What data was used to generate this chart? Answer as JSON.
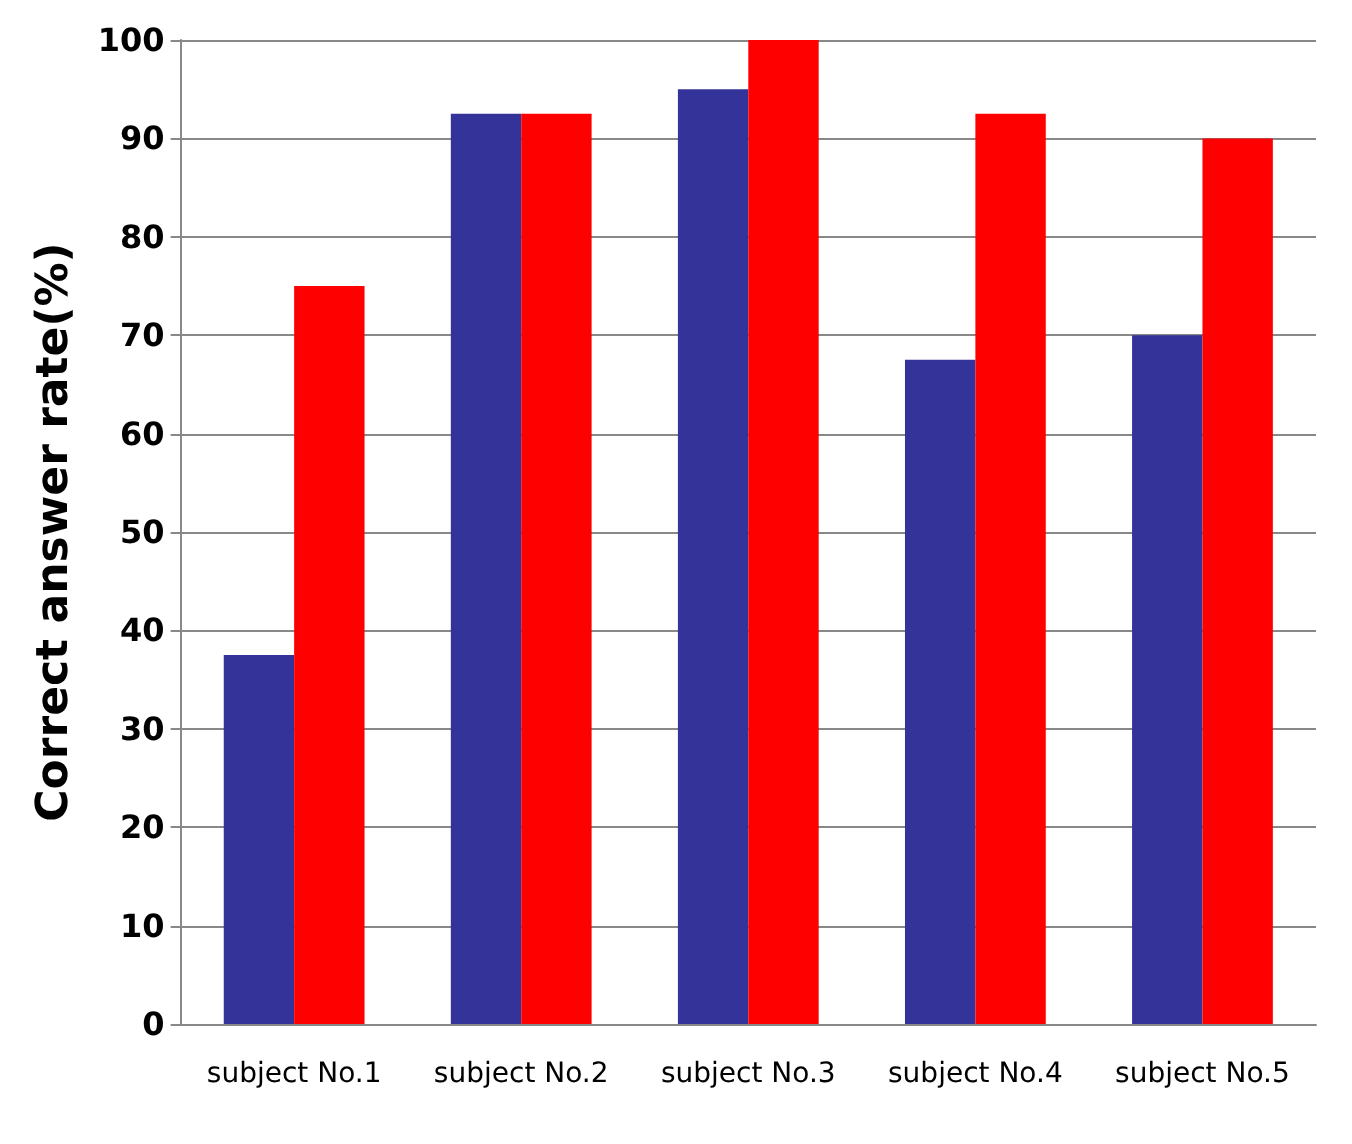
{
  "chart_data": {
    "type": "bar",
    "ylabel": "Correct answer rate(%)",
    "categories": [
      "subject No.1",
      "subject No.2",
      "subject No.3",
      "subject No.4",
      "subject No.5"
    ],
    "series": [
      {
        "color": "#333399",
        "values": [
          37.5,
          92.5,
          95,
          67.5,
          70
        ]
      },
      {
        "color": "#ff0000",
        "values": [
          75,
          92.5,
          100,
          92.5,
          90
        ]
      }
    ],
    "ylim": [
      0,
      100
    ],
    "yticks": [
      0,
      10,
      20,
      30,
      40,
      50,
      60,
      70,
      80,
      90,
      100
    ],
    "grid": "y"
  }
}
